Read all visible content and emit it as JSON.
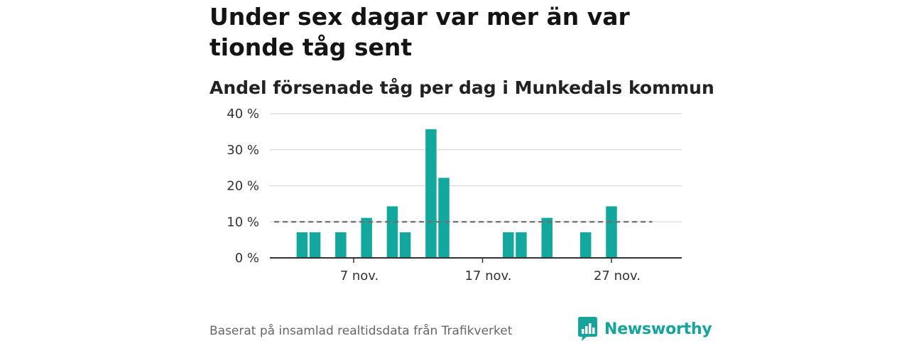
{
  "header": {
    "title": "Under sex dagar var mer än var tionde tåg sent",
    "subtitle": "Andel försenade tåg per dag i Munkedals kommun"
  },
  "chart_data": {
    "type": "bar",
    "title": "Under sex dagar var mer än var tionde tåg sent",
    "subtitle": "Andel försenade tåg per dag i Munkedals kommun",
    "xlabel": "",
    "ylabel": "",
    "ylim": [
      0,
      40
    ],
    "y_ticks": [
      "0 %",
      "10 %",
      "20 %",
      "30 %",
      "40 %"
    ],
    "y_tick_values": [
      0,
      10,
      20,
      30,
      40
    ],
    "x_tick_labels": [
      "7 nov.",
      "17 nov.",
      "27 nov."
    ],
    "x_tick_days": [
      7,
      17,
      27
    ],
    "x_range_days": [
      1,
      30
    ],
    "days": [
      1,
      2,
      3,
      4,
      5,
      6,
      7,
      8,
      9,
      10,
      11,
      12,
      13,
      14,
      15,
      16,
      17,
      18,
      19,
      20,
      21,
      22,
      23,
      24,
      25,
      26,
      27,
      28,
      29,
      30
    ],
    "values": [
      null,
      null,
      7.1,
      7.1,
      null,
      7.1,
      null,
      11.1,
      null,
      14.3,
      7.1,
      null,
      35.7,
      22.2,
      null,
      null,
      null,
      null,
      7.1,
      7.1,
      null,
      11.1,
      null,
      null,
      7.1,
      null,
      14.3,
      null,
      null,
      null
    ],
    "reference_line": {
      "value": 10,
      "style": "dashed"
    },
    "grid": true,
    "bar_color": "#13a89e"
  },
  "footer": {
    "source": "Baserat på insamlad realtidsdata från Trafikverket",
    "brand": "Newsworthy",
    "brand_color": "#16a39a"
  }
}
